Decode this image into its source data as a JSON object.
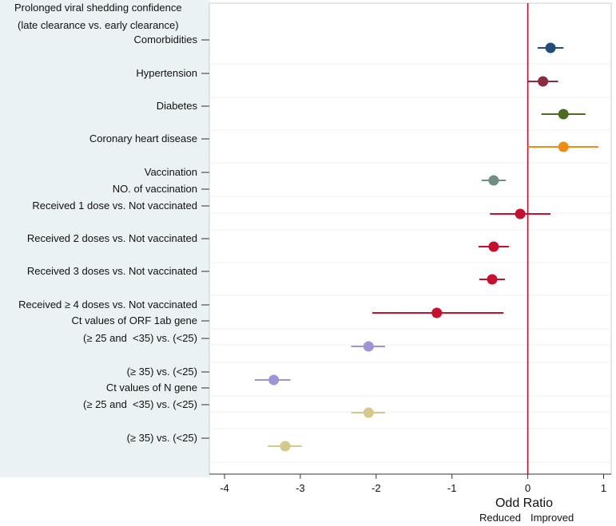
{
  "chart_data": {
    "type": "forest",
    "title_line1": "Prolonged viral shedding confidence",
    "title_line2": "(late clearance vs. early clearance)",
    "title_line1_color": "#4a7a2a",
    "title_line2_color": "#20a020",
    "xlabel": "Odd Ratio",
    "direction_labels": {
      "left": "Reduced",
      "right": "Improved"
    },
    "xlim": [
      -4.2,
      1.1
    ],
    "xticks": [
      -4,
      -3,
      -2,
      -1,
      0,
      1
    ],
    "reference_line_x": 0,
    "reference_line_color": "#c0102a",
    "row_labels": [
      "Comorbidities",
      "Hypertension",
      "Diabetes",
      "Coronary heart disease",
      "Vaccination",
      "NO. of vaccination",
      "Received 1 dose vs. Not vaccinated",
      "Received 2 doses vs. Not vaccinated",
      "Received 3 doses vs. Not vaccinated",
      "Received ≥ 4 doses vs. Not vaccinated",
      "Ct values of ORF 1ab gene",
      "(≥ 25 and  <35) vs. (<25)",
      "(≥ 35) vs. (<25)",
      "Ct values of N gene",
      "(≥ 25 and  <35) vs. (<25)",
      "(≥ 35) vs. (<25)"
    ],
    "points": [
      {
        "label": "Comorbidities",
        "row": 0,
        "est": 0.3,
        "lo": 0.13,
        "hi": 0.47,
        "color": "#1f4e79"
      },
      {
        "label": "Hypertension",
        "row": 1,
        "est": 0.2,
        "lo": 0.0,
        "hi": 0.4,
        "color": "#8b2c3e"
      },
      {
        "label": "Diabetes",
        "row": 2,
        "est": 0.47,
        "lo": 0.18,
        "hi": 0.76,
        "color": "#4b6b23"
      },
      {
        "label": "Coronary heart disease",
        "row": 3,
        "est": 0.47,
        "lo": 0.0,
        "hi": 0.93,
        "color": "#f28b12"
      },
      {
        "label": "Vaccination",
        "row": 4,
        "est": -0.45,
        "lo": -0.61,
        "hi": -0.29,
        "color": "#6f8f86"
      },
      {
        "label": "Received 1 dose vs. Not vaccinated",
        "row": 6,
        "est": -0.1,
        "lo": -0.5,
        "hi": 0.3,
        "color": "#c8102e"
      },
      {
        "label": "Received 2 doses vs. Not vaccinated",
        "row": 7,
        "est": -0.45,
        "lo": -0.65,
        "hi": -0.25,
        "color": "#c8102e"
      },
      {
        "label": "Received 3 doses vs. Not vaccinated",
        "row": 8,
        "est": -0.47,
        "lo": -0.64,
        "hi": -0.3,
        "color": "#c8102e"
      },
      {
        "label": "Received ≥ 4 doses vs. Not vaccinated",
        "row": 9,
        "est": -1.2,
        "lo": -2.05,
        "hi": -0.32,
        "color": "#c8102e"
      },
      {
        "label": "ORF 1ab (≥ 25 and <35) vs. (<25)",
        "row": 11,
        "est": -2.1,
        "lo": -2.33,
        "hi": -1.88,
        "color": "#9b95d6"
      },
      {
        "label": "ORF 1ab (≥ 35) vs. (<25)",
        "row": 12,
        "est": -3.35,
        "lo": -3.6,
        "hi": -3.13,
        "color": "#9b95d6"
      },
      {
        "label": "N gene (≥ 25 and <35) vs. (<25)",
        "row": 14,
        "est": -2.1,
        "lo": -2.33,
        "hi": -1.88,
        "color": "#d4c98a"
      },
      {
        "label": "N gene (≥ 35) vs. (<25)",
        "row": 15,
        "est": -3.2,
        "lo": -3.43,
        "hi": -2.98,
        "color": "#d4c98a"
      }
    ]
  }
}
